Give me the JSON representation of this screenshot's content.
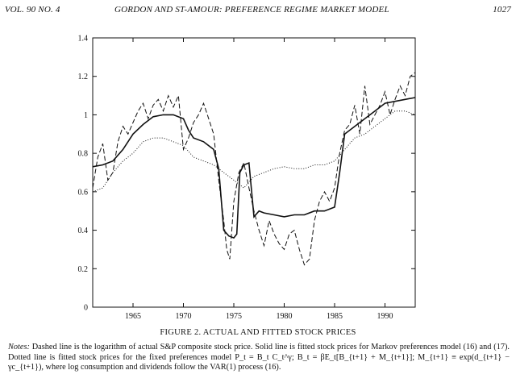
{
  "header": {
    "volume": "VOL. 90 NO. 4",
    "title": "GORDON AND ST-AMOUR: PREFERENCE REGIME MARKET MODEL",
    "page": "1027"
  },
  "figure": {
    "caption": "FIGURE 2. ACTUAL AND FITTED STOCK PRICES",
    "notes_label": "Notes:",
    "notes_text": "Dashed line is the logarithm of actual S&P composite stock price. Solid line is fitted stock prices for Markov preferences model (16) and (17). Dotted line is fitted stock prices for the fixed preferences model P_t = B_t C_t^γ; B_t = βE_t[B_{t+1} + M_{t+1}]; M_{t+1} ≡ exp(d_{t+1} − γc_{t+1}), where log consumption and dividends follow the VAR(1) process (16)."
  },
  "chart_data": {
    "type": "line",
    "xlim": [
      1961,
      1993
    ],
    "ylim": [
      0,
      1.4
    ],
    "x_ticks": [
      1965,
      1970,
      1975,
      1980,
      1985,
      1990
    ],
    "x_tick_labels": [
      "1965",
      "1970",
      "1975",
      "1980",
      "1985",
      "1990"
    ],
    "y_ticks": [
      0,
      0.2,
      0.4,
      0.6,
      0.8,
      1.0,
      1.2,
      1.4
    ],
    "y_tick_labels": [
      "0",
      "0.2",
      "0.4",
      "0.6",
      "0.8",
      "1",
      "1.2",
      "1.4"
    ],
    "grid": false,
    "series": [
      {
        "style": "dashed",
        "x": [
          1961,
          1961.5,
          1962,
          1962.5,
          1963,
          1963.5,
          1964,
          1964.5,
          1965,
          1965.5,
          1966,
          1966.5,
          1967,
          1967.5,
          1968,
          1968.5,
          1969,
          1969.5,
          1970,
          1970.5,
          1971,
          1971.5,
          1972,
          1972.5,
          1973,
          1973.5,
          1974,
          1974.3,
          1974.6,
          1975,
          1975.5,
          1976,
          1976.5,
          1977,
          1977.5,
          1978,
          1978.5,
          1979,
          1979.5,
          1980,
          1980.5,
          1981,
          1981.5,
          1982,
          1982.5,
          1983,
          1983.5,
          1984,
          1984.5,
          1985,
          1985.5,
          1986,
          1986.5,
          1987,
          1987.5,
          1988,
          1988.5,
          1989,
          1989.5,
          1990,
          1990.5,
          1991,
          1991.5,
          1992,
          1992.5,
          1993
        ],
        "y": [
          0.62,
          0.78,
          0.85,
          0.66,
          0.7,
          0.86,
          0.94,
          0.9,
          0.96,
          1.02,
          1.06,
          0.98,
          1.05,
          1.08,
          1.02,
          1.1,
          1.04,
          1.1,
          0.82,
          0.88,
          0.96,
          1.0,
          1.06,
          0.98,
          0.9,
          0.66,
          0.45,
          0.3,
          0.25,
          0.55,
          0.7,
          0.75,
          0.62,
          0.5,
          0.4,
          0.32,
          0.45,
          0.38,
          0.33,
          0.3,
          0.38,
          0.4,
          0.3,
          0.22,
          0.25,
          0.45,
          0.55,
          0.6,
          0.55,
          0.62,
          0.8,
          0.92,
          0.95,
          1.05,
          0.9,
          1.15,
          0.95,
          1.0,
          1.05,
          1.12,
          1.0,
          1.08,
          1.15,
          1.1,
          1.2,
          1.22
        ]
      },
      {
        "style": "solid",
        "x": [
          1961,
          1962,
          1963,
          1964,
          1965,
          1966,
          1967,
          1968,
          1969,
          1970,
          1970.5,
          1971,
          1972,
          1973,
          1973.5,
          1974,
          1974.5,
          1975,
          1975.3,
          1975.6,
          1976,
          1976.5,
          1977,
          1977.5,
          1978,
          1979,
          1980,
          1981,
          1982,
          1983,
          1984,
          1985,
          1985.5,
          1986,
          1987,
          1988,
          1989,
          1990,
          1991,
          1992,
          1993
        ],
        "y": [
          0.73,
          0.74,
          0.76,
          0.82,
          0.9,
          0.95,
          0.99,
          1.0,
          1.0,
          0.98,
          0.92,
          0.88,
          0.86,
          0.82,
          0.72,
          0.4,
          0.37,
          0.36,
          0.38,
          0.7,
          0.74,
          0.75,
          0.47,
          0.5,
          0.49,
          0.48,
          0.47,
          0.48,
          0.48,
          0.5,
          0.5,
          0.52,
          0.7,
          0.9,
          0.94,
          0.98,
          1.02,
          1.06,
          1.07,
          1.08,
          1.09
        ]
      },
      {
        "style": "dotted",
        "x": [
          1961,
          1962,
          1963,
          1964,
          1965,
          1966,
          1967,
          1968,
          1969,
          1970,
          1971,
          1972,
          1973,
          1974,
          1975,
          1976,
          1977,
          1978,
          1979,
          1980,
          1981,
          1982,
          1983,
          1984,
          1985,
          1986,
          1987,
          1988,
          1989,
          1990,
          1991,
          1992,
          1993
        ],
        "y": [
          0.6,
          0.62,
          0.7,
          0.76,
          0.8,
          0.86,
          0.88,
          0.88,
          0.86,
          0.84,
          0.78,
          0.76,
          0.74,
          0.7,
          0.66,
          0.62,
          0.68,
          0.7,
          0.72,
          0.73,
          0.72,
          0.72,
          0.74,
          0.74,
          0.76,
          0.82,
          0.88,
          0.9,
          0.94,
          0.98,
          1.02,
          1.02,
          1.0
        ]
      }
    ]
  }
}
